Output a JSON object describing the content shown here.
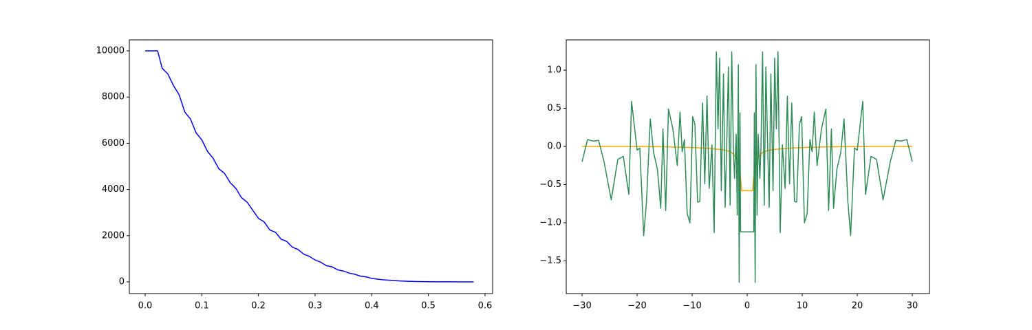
{
  "chart_data": [
    {
      "type": "line",
      "x": [
        0,
        0.01,
        0.02,
        0.022,
        0.03,
        0.04,
        0.05,
        0.06,
        0.07,
        0.08,
        0.09,
        0.1,
        0.11,
        0.12,
        0.13,
        0.14,
        0.15,
        0.16,
        0.17,
        0.18,
        0.19,
        0.2,
        0.21,
        0.22,
        0.23,
        0.24,
        0.25,
        0.26,
        0.27,
        0.28,
        0.29,
        0.3,
        0.31,
        0.32,
        0.33,
        0.34,
        0.35,
        0.36,
        0.37,
        0.38,
        0.39,
        0.4,
        0.41,
        0.42,
        0.43,
        0.44,
        0.45,
        0.46,
        0.47,
        0.48,
        0.5,
        0.52,
        0.54,
        0.56,
        0.58
      ],
      "series": [
        {
          "color": "#0000ff",
          "values": [
            10000,
            10000,
            10000,
            10000,
            9250,
            9000,
            8500,
            8100,
            7350,
            7050,
            6450,
            6150,
            5650,
            5350,
            4900,
            4700,
            4300,
            4050,
            3650,
            3450,
            3100,
            2750,
            2600,
            2250,
            2150,
            1850,
            1750,
            1500,
            1400,
            1200,
            1100,
            950,
            850,
            700,
            650,
            520,
            470,
            380,
            330,
            250,
            220,
            150,
            120,
            90,
            75,
            55,
            40,
            30,
            22,
            15,
            8,
            4,
            2,
            1,
            0
          ]
        }
      ],
      "xlim": [
        -0.0279,
        0.6134
      ],
      "xticks": [
        {
          "value": 0,
          "label": "0.0"
        },
        0.1,
        0.2,
        0.3,
        0.4,
        0.5,
        0.6
      ],
      "ylim": [
        -506,
        10476
      ],
      "yticks": [
        0,
        2000,
        4000,
        6000,
        8000,
        10000
      ],
      "grid": false
    },
    {
      "type": "line",
      "series": [
        {
          "color": "#ffa500",
          "x": [
            -30,
            -25,
            -20,
            -15,
            -10,
            -7,
            -5,
            -4,
            -3,
            -2.5,
            -2,
            -1.5,
            -1.2,
            -1,
            0,
            1,
            1.2,
            1.5,
            2,
            2.5,
            3,
            4,
            5,
            7,
            10,
            15,
            20,
            25,
            30
          ],
          "values": [
            0,
            0,
            0,
            -0.005,
            -0.015,
            -0.025,
            -0.04,
            -0.05,
            -0.07,
            -0.1,
            -0.15,
            -0.25,
            -0.4,
            -0.58,
            -0.58,
            -0.58,
            -0.4,
            -0.25,
            -0.15,
            -0.1,
            -0.07,
            -0.05,
            -0.04,
            -0.025,
            -0.015,
            -0.005,
            0,
            0,
            0
          ]
        },
        {
          "color": "#2e8b57",
          "x": [
            -30,
            -29,
            -28,
            -27,
            -26,
            -24.7,
            -23.5,
            -22.5,
            -21.5,
            -21,
            -20,
            -19.5,
            -18.8,
            -18.3,
            -17.6,
            -17,
            -16.3,
            -15.7,
            -15.3,
            -14.8,
            -14.3,
            -13.5,
            -12.7,
            -12.2,
            -11.8,
            -11.4,
            -10.9,
            -10.4,
            -9.9,
            -9.5,
            -9,
            -8.6,
            -8.1,
            -7.7,
            -7.3,
            -6.9,
            -6.4,
            -6,
            -5.6,
            -5.3,
            -5,
            -4.7,
            -4.3,
            -4,
            -3.7,
            -3.4,
            -3.1,
            -2.8,
            -2.5,
            -2.3,
            -2,
            -1.8,
            -1.6,
            -1.45,
            -1.3,
            -1.2,
            0,
            1.2,
            1.3,
            1.45,
            1.6,
            1.8,
            2,
            2.3,
            2.5,
            2.8,
            3.1,
            3.4,
            3.7,
            4,
            4.3,
            4.7,
            5,
            5.3,
            5.6,
            6,
            6.4,
            6.9,
            7.3,
            7.7,
            8.1,
            8.6,
            9,
            9.5,
            9.9,
            10.4,
            10.9,
            11.4,
            11.8,
            12.2,
            12.7,
            13.5,
            14.3,
            14.8,
            15.3,
            15.7,
            16.3,
            17,
            17.6,
            18.3,
            18.8,
            19.5,
            20,
            21,
            21.5,
            22.5,
            23.5,
            24.7,
            26,
            27,
            28,
            29,
            30
          ],
          "values": [
            -0.2,
            0.09,
            0.07,
            0.08,
            -0.2,
            -0.7,
            -0.17,
            -0.13,
            -0.63,
            0.59,
            -0.05,
            -0.02,
            -1.17,
            -0.73,
            0.36,
            -0.08,
            -0.3,
            -0.81,
            0.23,
            -0.84,
            0.49,
            0.23,
            -0.25,
            0.45,
            -0.07,
            0.09,
            -0.88,
            -1.0,
            0.39,
            0.29,
            -0.73,
            -0.72,
            0.57,
            -0.49,
            0.66,
            -0.55,
            0.02,
            -1.13,
            1.24,
            0.23,
            1.16,
            -0.58,
            0.95,
            -0.8,
            0.08,
            1.04,
            -0.77,
            1.24,
            -0.03,
            -0.42,
            0.16,
            -0.9,
            1.07,
            -1.78,
            0.44,
            -1.12,
            -1.12,
            -1.12,
            0.44,
            -1.78,
            1.07,
            -0.9,
            0.16,
            -0.42,
            -0.03,
            1.24,
            -0.77,
            1.04,
            0.08,
            -0.8,
            0.95,
            -0.58,
            1.16,
            0.23,
            1.24,
            -1.13,
            0.02,
            -0.55,
            0.66,
            -0.49,
            0.57,
            -0.72,
            -0.73,
            0.29,
            0.39,
            -1.0,
            -0.88,
            0.09,
            -0.07,
            0.45,
            -0.25,
            0.23,
            0.49,
            -0.84,
            0.23,
            -0.81,
            -0.3,
            -0.08,
            0.36,
            -0.73,
            -1.17,
            -0.02,
            -0.05,
            0.59,
            -0.63,
            -0.13,
            -0.17,
            -0.7,
            -0.2,
            0.08,
            0.07,
            0.09,
            -0.2
          ]
        }
      ],
      "xlim": [
        -32.875,
        33.125
      ],
      "xticks": [
        {
          "value": -30,
          "label": "−30"
        },
        {
          "value": -20,
          "label": "−20"
        },
        {
          "value": -10,
          "label": "−10"
        },
        0,
        10,
        20,
        30
      ],
      "ylim": [
        -1.928,
        1.396
      ],
      "yticks": [
        {
          "value": -1.5,
          "label": "−1.5"
        },
        {
          "value": -1.0,
          "label": "−1.0"
        },
        {
          "value": -0.5,
          "label": "−0.5"
        },
        {
          "value": 0,
          "label": "0.0"
        },
        0.5,
        {
          "value": 1.0,
          "label": "1.0"
        }
      ],
      "grid": false
    }
  ]
}
